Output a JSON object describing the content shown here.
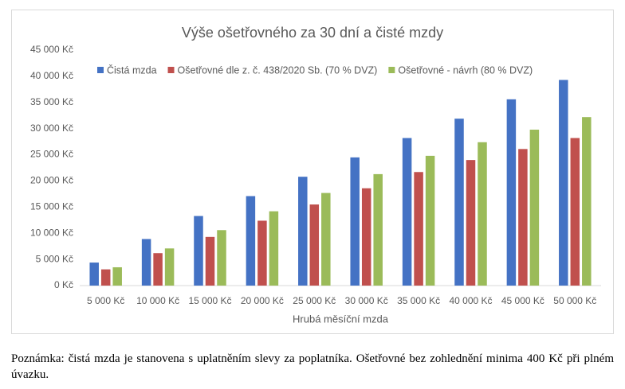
{
  "chart_data": {
    "type": "bar",
    "title": "Výše ošetřovného za 30 dní a čisté mzdy",
    "x_label": "Hrubá měsíční mzda",
    "categories": [
      "5 000 Kč",
      "10 000 Kč",
      "15 000 Kč",
      "20 000 Kč",
      "25 000 Kč",
      "30 000 Kč",
      "35 000 Kč",
      "40 000 Kč",
      "45 000 Kč",
      "50 000 Kč"
    ],
    "series": [
      {
        "name": "Čistá mzda",
        "color": "#4472c4",
        "values": [
          4400,
          8900,
          13300,
          17100,
          20800,
          24500,
          28200,
          31900,
          35600,
          39300
        ]
      },
      {
        "name": "Ošetřovné dle z. č. 438/2020 Sb. (70 % DVZ)",
        "color": "#c0504d",
        "values": [
          3100,
          6200,
          9300,
          12400,
          15500,
          18600,
          21700,
          24000,
          26100,
          28200
        ]
      },
      {
        "name": "Ošetřovné  - návrh (80 % DVZ)",
        "color": "#9bbb59",
        "values": [
          3500,
          7100,
          10600,
          14200,
          17700,
          21300,
          24800,
          27400,
          29800,
          32200
        ]
      }
    ],
    "ylim": [
      0,
      45000
    ],
    "yticks": [
      {
        "value": 0,
        "label": "0 Kč"
      },
      {
        "value": 5000,
        "label": "5 000 Kč"
      },
      {
        "value": 10000,
        "label": "10 000 Kč"
      },
      {
        "value": 15000,
        "label": "15 000 Kč"
      },
      {
        "value": 20000,
        "label": "20 000 Kč"
      },
      {
        "value": 25000,
        "label": "25 000 Kč"
      },
      {
        "value": 30000,
        "label": "30 000 Kč"
      },
      {
        "value": 35000,
        "label": "35 000 Kč"
      },
      {
        "value": 40000,
        "label": "40 000 Kč"
      },
      {
        "value": 45000,
        "label": "45 000 Kč"
      }
    ],
    "grid": false,
    "legend": "top"
  },
  "note": "Poznámka: čistá mzda je stanovena s uplatněním slevy za poplatníka. Ošetřovné bez zohlednění minima 400 Kč při plném úvazku."
}
